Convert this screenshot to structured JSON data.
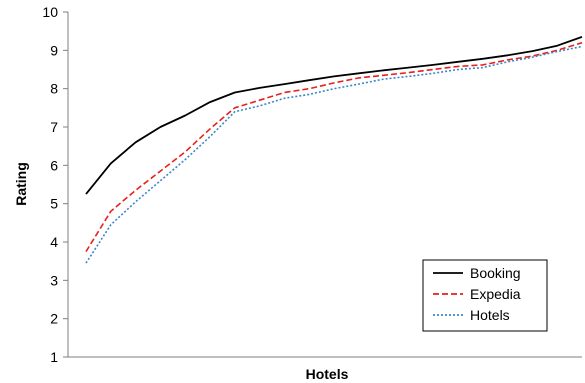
{
  "chart_data": {
    "type": "line",
    "title": "",
    "xlabel": "Hotels",
    "ylabel": "Rating",
    "ylim": [
      1,
      10
    ],
    "yticks": [
      "1",
      "2",
      "3",
      "4",
      "5",
      "6",
      "7",
      "8",
      "9",
      "10"
    ],
    "grid": false,
    "legend_position": "bottom-right",
    "legend": [
      "Booking",
      "Expedia",
      "Hotels"
    ],
    "x": [
      0,
      5,
      10,
      15,
      20,
      25,
      30,
      35,
      40,
      45,
      50,
      55,
      60,
      65,
      70,
      75,
      80,
      85,
      90,
      95,
      100
    ],
    "series": [
      {
        "name": "Booking",
        "color": "#000000",
        "line_style": "solid",
        "values": [
          5.25,
          6.05,
          6.6,
          7.0,
          7.3,
          7.65,
          7.9,
          8.02,
          8.12,
          8.22,
          8.32,
          8.4,
          8.48,
          8.55,
          8.62,
          8.7,
          8.78,
          8.87,
          8.98,
          9.12,
          9.35
        ]
      },
      {
        "name": "Expedia",
        "color": "#e8211b",
        "line_style": "dashed",
        "values": [
          3.75,
          4.8,
          5.35,
          5.85,
          6.35,
          6.95,
          7.5,
          7.7,
          7.9,
          8.0,
          8.15,
          8.28,
          8.35,
          8.42,
          8.5,
          8.58,
          8.62,
          8.75,
          8.85,
          9.0,
          9.2
        ]
      },
      {
        "name": "Hotels",
        "color": "#3b86c8",
        "line_style": "dotted",
        "values": [
          3.45,
          4.45,
          5.05,
          5.6,
          6.15,
          6.75,
          7.4,
          7.55,
          7.75,
          7.85,
          8.0,
          8.12,
          8.25,
          8.32,
          8.4,
          8.5,
          8.55,
          8.7,
          8.82,
          8.97,
          9.1
        ]
      }
    ]
  }
}
